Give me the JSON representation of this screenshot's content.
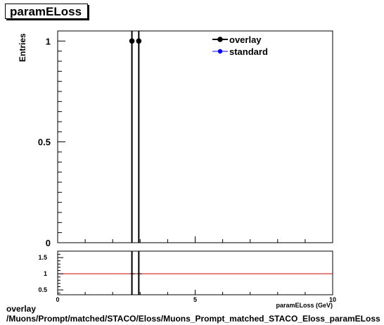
{
  "title": "paramELoss",
  "footer": {
    "line1": "overlay",
    "line2": "/Muons/Prompt/matched/STACO/Eloss/Muons_Prompt_matched_STACO_Eloss_paramELoss"
  },
  "chart_data": [
    {
      "type": "scatter",
      "title": "paramELoss",
      "xlabel": "paramELoss (GeV)",
      "ylabel": "Entries",
      "xlim": [
        0,
        10
      ],
      "ylim": [
        0,
        1.05
      ],
      "yticks": [
        "0",
        "0.5",
        "1"
      ],
      "grid": false,
      "legend_position": "top-right",
      "series": [
        {
          "name": "overlay",
          "color": "#000000",
          "x": [
            2.7,
            2.95
          ],
          "y": [
            1,
            1
          ],
          "yerr": [
            1,
            1
          ]
        },
        {
          "name": "standard",
          "color": "#0000ff",
          "x": [],
          "y": []
        }
      ]
    },
    {
      "type": "line",
      "xlim": [
        0,
        10
      ],
      "ylim": [
        0.35,
        1.7
      ],
      "xticks": [
        "0",
        "5",
        "10"
      ],
      "yticks": [
        "0.5",
        "1",
        "1.5"
      ],
      "reference_value": 1,
      "reference_color": "#cc0000",
      "series": [
        {
          "x": [
            2.7,
            2.95
          ],
          "y": [
            1,
            1
          ]
        }
      ]
    }
  ]
}
